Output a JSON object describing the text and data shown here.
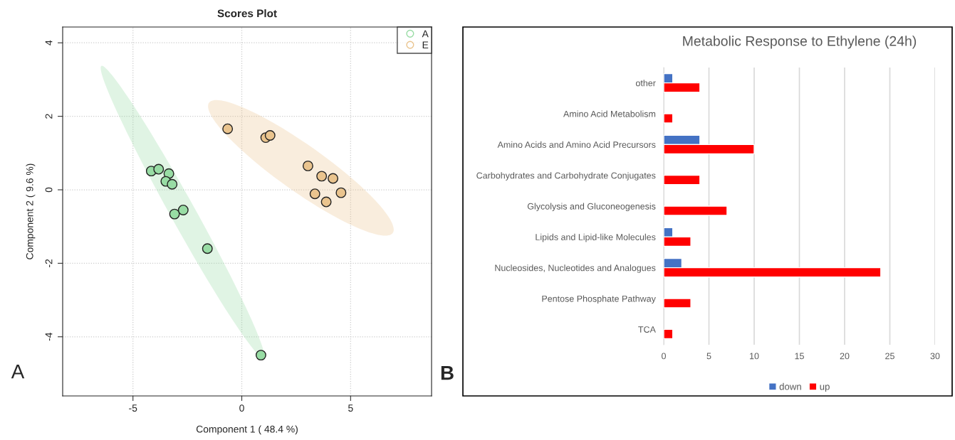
{
  "chart_data": [
    {
      "type": "scatter",
      "title": "Scores Plot",
      "xlabel": "Component 1 ( 48.4 %)",
      "ylabel": "Component 2 ( 9.6 %)",
      "xlim": [
        -8.23,
        8.72
      ],
      "ylim": [
        -5.61,
        4.43
      ],
      "xticks": [
        -5,
        0,
        5
      ],
      "yticks": [
        -4,
        -2,
        0,
        2,
        4
      ],
      "grid": true,
      "legend": "top right",
      "marker": "circle",
      "annotations": [
        "A"
      ],
      "series": [
        {
          "name": "A",
          "color": "#98dca4",
          "x": [
            -4.16,
            -3.82,
            -3.35,
            -3.49,
            -3.2,
            -3.09,
            -2.69,
            -1.58,
            0.88
          ],
          "values": [
            0.51,
            0.56,
            0.44,
            0.23,
            0.15,
            -0.66,
            -0.55,
            -1.6,
            -4.5
          ]
        },
        {
          "name": "E",
          "color": "#eac48e",
          "x": [
            -0.65,
            1.1,
            1.3,
            3.04,
            3.67,
            4.19,
            3.36,
            3.88,
            4.56
          ],
          "values": [
            1.66,
            1.42,
            1.48,
            0.65,
            0.37,
            0.31,
            -0.11,
            -0.33,
            -0.08
          ]
        }
      ]
    },
    {
      "type": "bar",
      "orientation": "horizontal",
      "title": "Metabolic Response to Ethylene (24h)",
      "categories": [
        "other",
        "Amino Acid Metabolism",
        "Amino Acids and Amino Acid Precursors",
        "Carbohydrates and Carbohydrate Conjugates",
        "Glycolysis and Gluconeogenesis",
        "Lipids and Lipid-like Molecules",
        "Nucleosides, Nucleotides and Analogues",
        "Pentose Phosphate Pathway",
        "TCA"
      ],
      "xlim": [
        0,
        30
      ],
      "xticks": [
        0,
        5,
        10,
        15,
        20,
        25,
        30
      ],
      "grid": "x",
      "legend": "bottom",
      "annotations": [
        "B"
      ],
      "series": [
        {
          "name": "down",
          "color": "#4472c4",
          "values": [
            1,
            null,
            4,
            null,
            null,
            1,
            2,
            null,
            null
          ]
        },
        {
          "name": "up",
          "color": "#ff0000",
          "values": [
            4,
            1,
            10,
            4,
            7,
            3,
            24,
            3,
            1
          ]
        }
      ]
    }
  ]
}
